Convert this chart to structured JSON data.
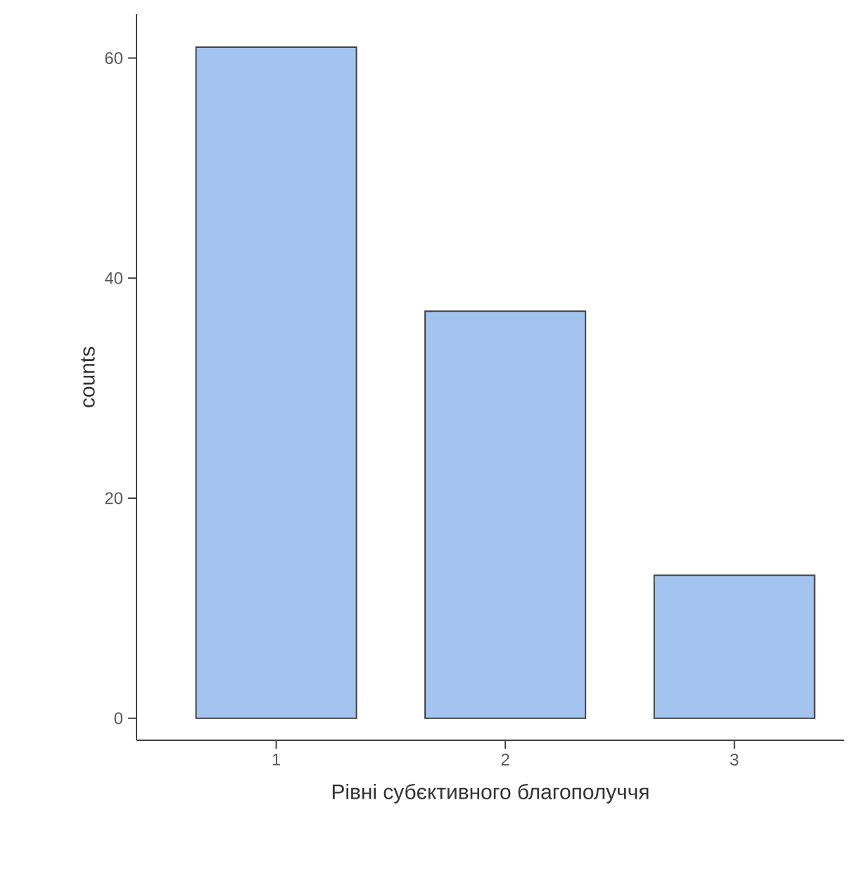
{
  "chart_data": {
    "type": "bar",
    "xlabel": "Рівні субєктивного благополуччя",
    "ylabel": "counts",
    "categories": [
      "1",
      "2",
      "3"
    ],
    "values": [
      61,
      37,
      13
    ],
    "color": "#a4c4f0",
    "ylim": [
      -2,
      64
    ],
    "yticks": [
      0,
      20,
      40,
      60
    ]
  }
}
